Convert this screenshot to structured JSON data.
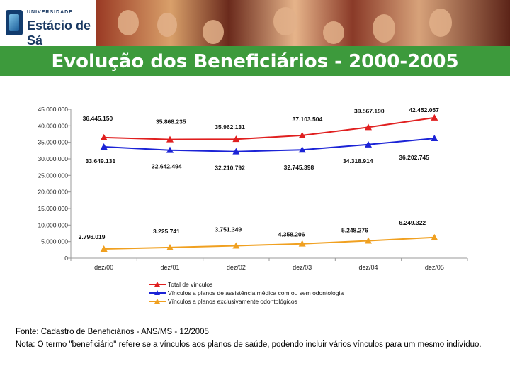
{
  "header": {
    "logo_small": "UNIVERSIDADE",
    "logo_name": "Estácio de Sá",
    "title": "Evolução dos Beneficiários - 2000-2005"
  },
  "colors": {
    "title_bg": "#3d9a3c",
    "total": "#e01f1f",
    "medical": "#1b23d6",
    "dental": "#f0a020"
  },
  "chart_data": {
    "type": "line",
    "categories": [
      "dez/00",
      "dez/01",
      "dez/02",
      "dez/03",
      "dez/04",
      "dez/05"
    ],
    "y_ticks": [
      "45.000.000",
      "40.000.000",
      "35.000.000",
      "30.000.000",
      "25.000.000",
      "20.000.000",
      "15.000.000",
      "10.000.000",
      "5.000.000",
      "0"
    ],
    "ylim": [
      0,
      45000000
    ],
    "series": [
      {
        "name": "Total de vínculos",
        "color": "#e01f1f",
        "values": [
          36445150,
          35868235,
          35962131,
          37103504,
          39567190,
          42452057
        ],
        "labels": [
          "36.445.150",
          "35.868.235",
          "35.962.131",
          "37.103.504",
          "39.567.190",
          "42.452.057"
        ]
      },
      {
        "name": "Vínculos a planos de assistência médica com ou sem odontologia",
        "color": "#1b23d6",
        "values": [
          33649131,
          32642494,
          32210792,
          32745398,
          34318914,
          36202745
        ],
        "labels": [
          "33.649.131",
          "32.642.494",
          "32.210.792",
          "32.745.398",
          "34.318.914",
          "36.202.745"
        ]
      },
      {
        "name": "Vínculos a planos exclusivamente odontológicos",
        "color": "#f0a020",
        "values": [
          2796019,
          3225741,
          3751349,
          4358206,
          5248276,
          6249322
        ],
        "labels": [
          "2.796.019",
          "3.225.741",
          "3.751.349",
          "4.358.206",
          "5.248.276",
          "6.249.322"
        ]
      }
    ],
    "legend_position": "bottom-left"
  },
  "footer": {
    "source": "Fonte: Cadastro de Beneficiários - ANS/MS - 12/2005",
    "note": "Nota: O termo \"beneficiário\" refere se a vínculos aos planos de saúde, podendo incluir vários vínculos para um mesmo indivíduo."
  }
}
